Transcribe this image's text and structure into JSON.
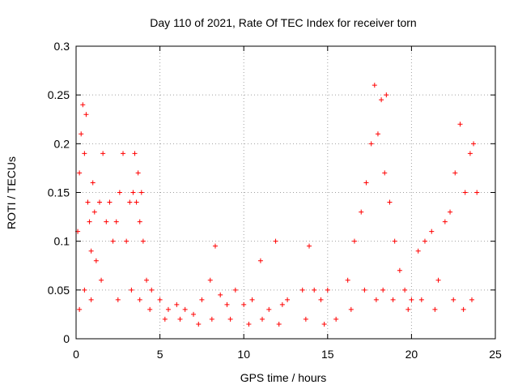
{
  "chart_data": {
    "type": "scatter",
    "title": "Day 110 of 2021, Rate Of TEC Index for receiver torn",
    "xlabel": "GPS time / hours",
    "ylabel": "ROTI / TECUs",
    "xlim": [
      0,
      25
    ],
    "ylim": [
      0,
      0.3
    ],
    "xticks": [
      0,
      5,
      10,
      15,
      20,
      25
    ],
    "xtick_labels": [
      "0",
      "5",
      "10",
      "15",
      "20",
      "25"
    ],
    "yticks": [
      0,
      0.05,
      0.1,
      0.15,
      0.2,
      0.25,
      0.3
    ],
    "ytick_labels": [
      "0",
      "0.05",
      "0.1",
      "0.15",
      "0.2",
      "0.25",
      "0.3"
    ],
    "grid": true,
    "marker": "plus",
    "series": [
      {
        "name": "ROTI",
        "color": "#ff0000",
        "x": [
          0.1,
          0.2,
          0.3,
          0.4,
          0.5,
          0.6,
          0.7,
          0.8,
          0.9,
          1.0,
          1.1,
          1.2,
          1.4,
          1.6,
          1.8,
          2.0,
          2.2,
          2.4,
          2.6,
          2.8,
          3.0,
          3.2,
          3.4,
          3.5,
          3.6,
          3.7,
          3.8,
          3.9,
          4.0,
          4.2,
          4.5,
          5.0,
          5.5,
          6.0,
          6.5,
          7.0,
          7.5,
          8.0,
          8.3,
          8.6,
          9.0,
          9.5,
          10.0,
          10.5,
          11.0,
          11.5,
          11.9,
          12.3,
          12.6,
          13.5,
          13.9,
          14.2,
          14.6,
          15.0,
          15.5,
          16.2,
          16.6,
          17.0,
          17.3,
          17.6,
          17.8,
          18.0,
          18.2,
          18.4,
          18.5,
          18.7,
          19.0,
          19.3,
          19.6,
          20.0,
          20.4,
          20.8,
          21.2,
          21.6,
          22.0,
          22.3,
          22.6,
          22.9,
          23.2,
          23.5,
          23.7,
          23.9,
          0.2,
          0.5,
          0.9,
          1.5,
          2.5,
          3.3,
          3.8,
          4.4,
          5.3,
          6.2,
          7.3,
          8.1,
          9.2,
          10.3,
          11.1,
          12.1,
          13.7,
          14.8,
          16.4,
          17.2,
          17.9,
          18.3,
          18.9,
          19.8,
          20.6,
          21.4,
          22.5,
          23.1,
          23.6
        ],
        "y": [
          0.11,
          0.17,
          0.21,
          0.24,
          0.19,
          0.23,
          0.14,
          0.12,
          0.09,
          0.16,
          0.13,
          0.08,
          0.14,
          0.19,
          0.12,
          0.14,
          0.1,
          0.12,
          0.15,
          0.19,
          0.1,
          0.14,
          0.15,
          0.19,
          0.14,
          0.17,
          0.12,
          0.15,
          0.1,
          0.06,
          0.05,
          0.04,
          0.03,
          0.035,
          0.03,
          0.025,
          0.04,
          0.06,
          0.095,
          0.045,
          0.035,
          0.05,
          0.035,
          0.04,
          0.08,
          0.03,
          0.1,
          0.035,
          0.04,
          0.05,
          0.095,
          0.05,
          0.04,
          0.05,
          0.02,
          0.06,
          0.1,
          0.13,
          0.16,
          0.2,
          0.26,
          0.21,
          0.245,
          0.17,
          0.25,
          0.14,
          0.1,
          0.07,
          0.05,
          0.04,
          0.09,
          0.1,
          0.11,
          0.06,
          0.12,
          0.13,
          0.17,
          0.22,
          0.15,
          0.19,
          0.2,
          0.15,
          0.03,
          0.05,
          0.04,
          0.06,
          0.04,
          0.05,
          0.04,
          0.03,
          0.02,
          0.02,
          0.015,
          0.02,
          0.02,
          0.015,
          0.02,
          0.015,
          0.02,
          0.015,
          0.03,
          0.05,
          0.04,
          0.05,
          0.04,
          0.03,
          0.04,
          0.03,
          0.04,
          0.03,
          0.04
        ]
      }
    ]
  }
}
